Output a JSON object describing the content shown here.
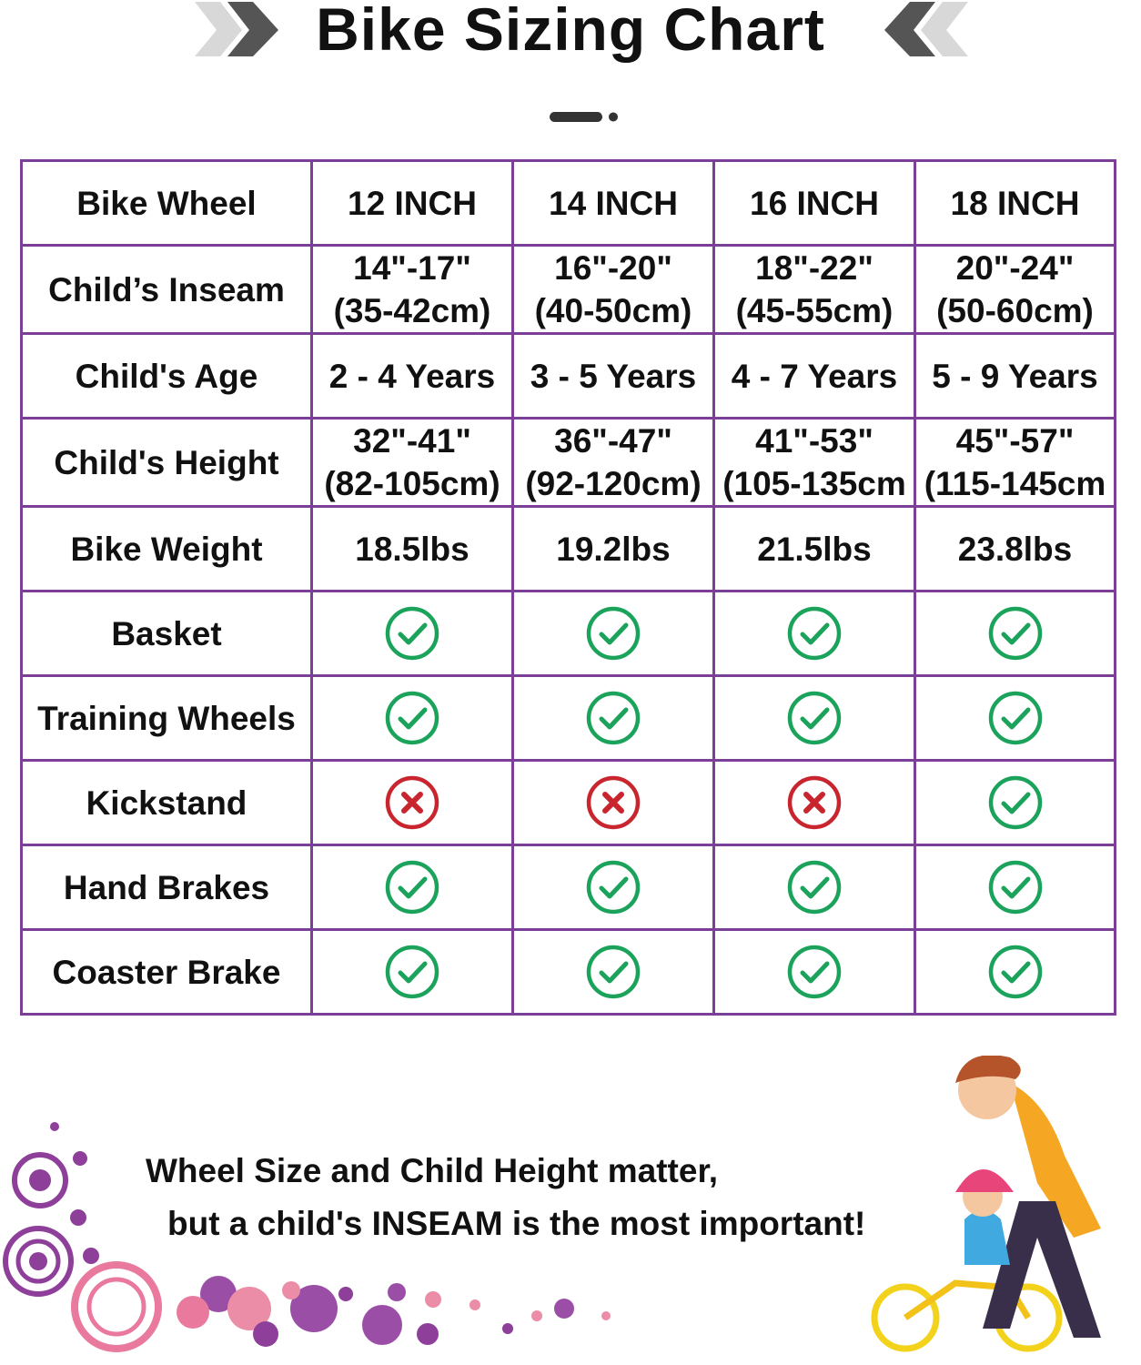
{
  "title": "Bike Sizing Chart",
  "colors": {
    "border": "#7b3f98",
    "check": "#1ba35c",
    "cross": "#c9252f"
  },
  "table": {
    "columns": [
      "Bike Wheel",
      "12 INCH",
      "14 INCH",
      "16 INCH",
      "18 INCH"
    ],
    "rows": [
      {
        "label": "Child’s Inseam",
        "cells": [
          [
            "14\"-17\"",
            "(35-42cm)"
          ],
          [
            "16\"-20\"",
            "(40-50cm)"
          ],
          [
            "18\"-22\"",
            "(45-55cm)"
          ],
          [
            "20\"-24\"",
            "(50-60cm)"
          ]
        ]
      },
      {
        "label": "Child's Age",
        "cells": [
          [
            "2 - 4 Years"
          ],
          [
            "3 - 5 Years"
          ],
          [
            "4 - 7 Years"
          ],
          [
            "5 - 9 Years"
          ]
        ]
      },
      {
        "label": "Child's Height",
        "cells": [
          [
            "32\"-41\"",
            "(82-105cm)"
          ],
          [
            "36\"-47\"",
            "(92-120cm)"
          ],
          [
            "41\"-53\"",
            "(105-135cm"
          ],
          [
            "45\"-57\"",
            "(115-145cm"
          ]
        ]
      },
      {
        "label": "Bike Weight",
        "cells": [
          [
            "18.5lbs"
          ],
          [
            "19.2lbs"
          ],
          [
            "21.5lbs"
          ],
          [
            "23.8lbs"
          ]
        ]
      },
      {
        "label": "Basket",
        "features": [
          true,
          true,
          true,
          true
        ]
      },
      {
        "label": "Training Wheels",
        "features": [
          true,
          true,
          true,
          true
        ]
      },
      {
        "label": "Kickstand",
        "features": [
          false,
          false,
          false,
          true
        ]
      },
      {
        "label": "Hand Brakes",
        "features": [
          true,
          true,
          true,
          true
        ]
      },
      {
        "label": "Coaster Brake",
        "features": [
          true,
          true,
          true,
          true
        ]
      }
    ]
  },
  "note": {
    "line1": "Wheel Size and Child Height matter,",
    "line2": "but a child's INSEAM is the most important!"
  }
}
